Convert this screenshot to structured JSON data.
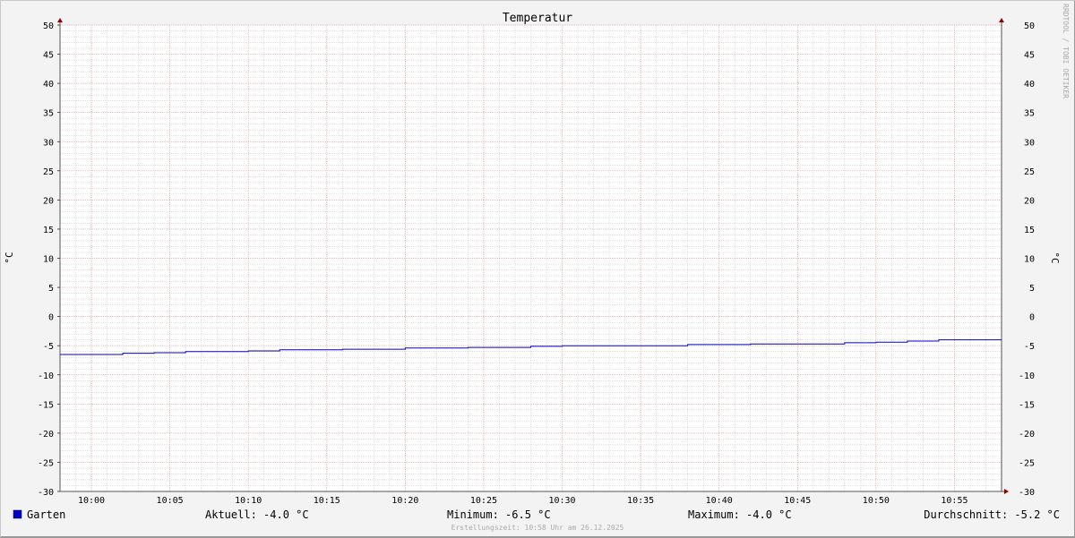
{
  "chart_data": {
    "type": "line",
    "title": "Temperatur",
    "ylabel": "°C",
    "ylabel_right": "°C",
    "ylim": [
      -30,
      50
    ],
    "y_ticks": [
      50,
      45,
      40,
      35,
      30,
      25,
      20,
      15,
      10,
      5,
      0,
      -5,
      -10,
      -15,
      -20,
      -25,
      -30
    ],
    "x_range": [
      "09:58",
      "10:58"
    ],
    "x_ticks": [
      "10:00",
      "10:05",
      "10:10",
      "10:15",
      "10:20",
      "10:25",
      "10:30",
      "10:35",
      "10:40",
      "10:45",
      "10:50",
      "10:55"
    ],
    "grid": true,
    "step": true,
    "series": [
      {
        "name": "Garten",
        "color": "#0000cc",
        "points": [
          [
            "09:58",
            -6.5
          ],
          [
            "10:02",
            -6.3
          ],
          [
            "10:04",
            -6.2
          ],
          [
            "10:06",
            -6.0
          ],
          [
            "10:10",
            -5.9
          ],
          [
            "10:12",
            -5.7
          ],
          [
            "10:16",
            -5.6
          ],
          [
            "10:20",
            -5.4
          ],
          [
            "10:24",
            -5.3
          ],
          [
            "10:28",
            -5.1
          ],
          [
            "10:30",
            -5.0
          ],
          [
            "10:38",
            -4.8
          ],
          [
            "10:42",
            -4.7
          ],
          [
            "10:48",
            -4.5
          ],
          [
            "10:50",
            -4.4
          ],
          [
            "10:52",
            -4.2
          ],
          [
            "10:54",
            -4.0
          ],
          [
            "10:58",
            -4.0
          ]
        ]
      }
    ],
    "legend": {
      "name": "Garten",
      "aktuell": "Aktuell: -4.0 °C",
      "minimum": "Minimum: -6.5 °C",
      "maximum": "Maximum: -4.0 °C",
      "durchschnitt": "Durchschnitt: -5.2 °C"
    },
    "footer": "Erstellungszeit: 10:58 Uhr am 26.12.2025",
    "watermark": "RRDTOOL / TOBI OETIKER"
  }
}
